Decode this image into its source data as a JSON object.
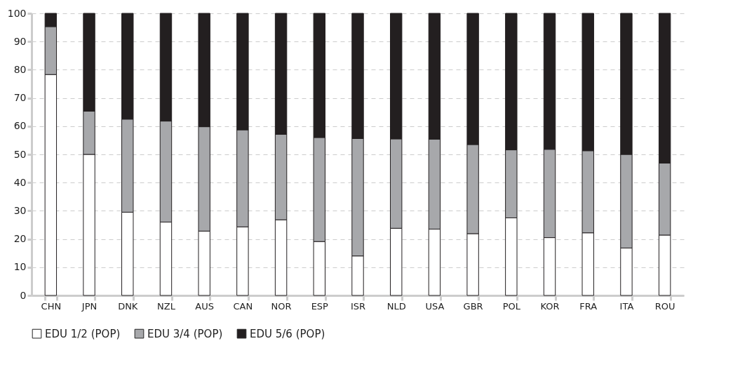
{
  "chart_data": {
    "type": "bar",
    "stacked": true,
    "categories": [
      "CHN",
      "JPN",
      "DNK",
      "NZL",
      "AUS",
      "CAN",
      "NOR",
      "ESP",
      "ISR",
      "NLD",
      "USA",
      "GBR",
      "POL",
      "KOR",
      "FRA",
      "ITA",
      "ROU"
    ],
    "series": [
      {
        "name": "EDU 1/2 (POP)",
        "color": "#ffffff",
        "values": [
          78.3,
          50,
          29.5,
          26,
          22.8,
          24.3,
          26.8,
          19.1,
          14,
          23.8,
          23.5,
          21.9,
          27.5,
          20.5,
          22.2,
          16.8,
          21.4
        ]
      },
      {
        "name": "EDU 3/4 (POP)",
        "color": "#a7a8ab",
        "values": [
          17,
          15.3,
          33,
          35.8,
          37,
          34.4,
          30.3,
          36.9,
          41.6,
          31.7,
          31.9,
          31.6,
          24.1,
          31.3,
          29.1,
          33.2,
          25.5
        ]
      },
      {
        "name": "EDU 5/6 (POP)",
        "color": "#231f20",
        "values": [
          4.7,
          34.7,
          37.5,
          38.2,
          40.2,
          41.3,
          42.9,
          44,
          44.4,
          44.5,
          44.6,
          46.5,
          48.4,
          48.2,
          48.7,
          50,
          53.1
        ]
      }
    ],
    "ylim": [
      0,
      100
    ],
    "yticks": [
      0,
      10,
      20,
      30,
      40,
      50,
      60,
      70,
      80,
      90,
      100
    ],
    "grid": "y",
    "legend": "bottom left"
  }
}
